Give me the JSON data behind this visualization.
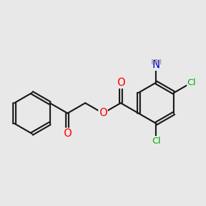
{
  "background_color": "#e8e8e8",
  "bond_color": "#1a1a1a",
  "bond_width": 1.6,
  "atom_colors": {
    "O": "#ff0000",
    "N": "#0000cc",
    "Cl": "#00aa00",
    "H": "#888888",
    "C": "#1a1a1a"
  }
}
